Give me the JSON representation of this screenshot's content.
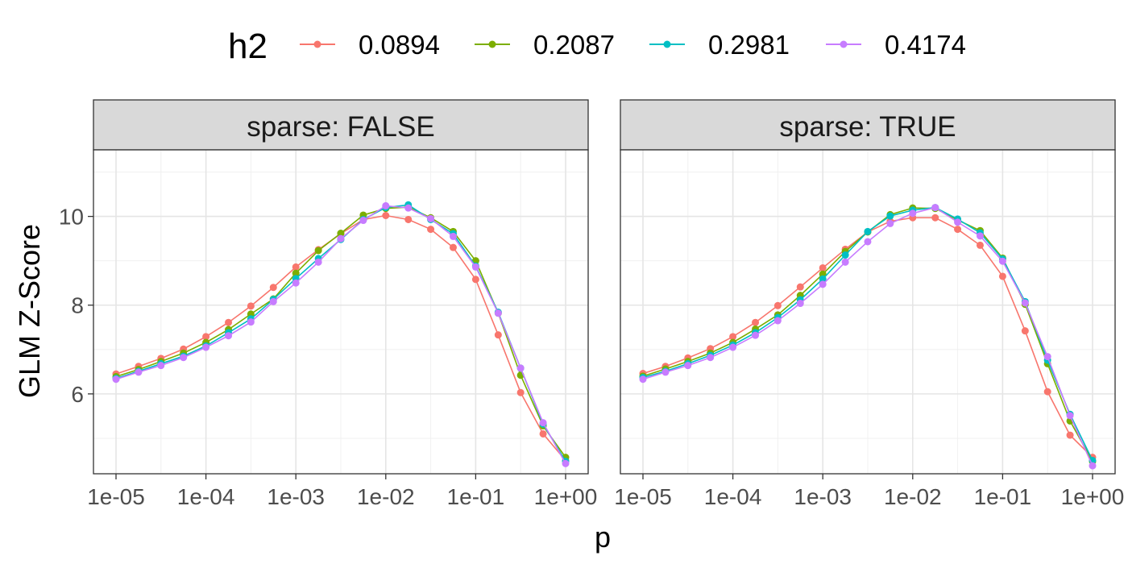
{
  "chart_data": {
    "type": "line",
    "ylabel": "GLM Z-Score",
    "xlabel": "p",
    "x_scale": "log10",
    "xlim": [
      1e-05,
      1
    ],
    "ylim": [
      4.2,
      11.5
    ],
    "grid": true,
    "legend": {
      "title": "h2",
      "position": "top"
    },
    "x_ticks": [
      {
        "value": 1e-05,
        "label": "1e-05"
      },
      {
        "value": 0.0001,
        "label": "1e-04"
      },
      {
        "value": 0.001,
        "label": "1e-03"
      },
      {
        "value": 0.01,
        "label": "1e-02"
      },
      {
        "value": 0.1,
        "label": "1e-01"
      },
      {
        "value": 1,
        "label": "1e+00"
      }
    ],
    "y_ticks": [
      {
        "value": 6,
        "label": "6"
      },
      {
        "value": 8,
        "label": "8"
      },
      {
        "value": 10,
        "label": "10"
      }
    ],
    "x": [
      1e-05,
      1.78e-05,
      3.16e-05,
      5.62e-05,
      0.0001,
      0.000178,
      0.000316,
      0.000562,
      0.001,
      0.00178,
      0.00316,
      0.00562,
      0.01,
      0.0178,
      0.0316,
      0.0562,
      0.1,
      0.178,
      0.316,
      0.562,
      1
    ],
    "panels": [
      {
        "strip": "sparse: FALSE",
        "series": [
          {
            "name": "0.0894",
            "color": "#F8766D",
            "values": [
              6.45,
              6.62,
              6.8,
              7.01,
              7.29,
              7.61,
              7.98,
              8.4,
              8.86,
              9.25,
              9.61,
              9.93,
              10.02,
              9.93,
              9.71,
              9.3,
              8.58,
              7.33,
              6.03,
              5.1,
              4.5
            ]
          },
          {
            "name": "0.2087",
            "color": "#7CAE00",
            "values": [
              6.39,
              6.55,
              6.73,
              6.92,
              7.16,
              7.45,
              7.8,
              8.14,
              8.72,
              9.23,
              9.62,
              10.03,
              10.18,
              10.21,
              9.97,
              9.66,
              9.0,
              7.82,
              6.42,
              5.28,
              4.57
            ]
          },
          {
            "name": "0.2981",
            "color": "#00BFC4",
            "values": [
              6.35,
              6.51,
              6.68,
              6.85,
              7.08,
              7.38,
              7.69,
              8.13,
              8.6,
              9.05,
              9.48,
              9.93,
              10.2,
              10.26,
              9.93,
              9.61,
              8.88,
              7.84,
              6.58,
              5.32,
              4.48
            ]
          },
          {
            "name": "0.4174",
            "color": "#C77CFF",
            "values": [
              6.33,
              6.49,
              6.64,
              6.82,
              7.05,
              7.31,
              7.62,
              8.08,
              8.5,
              8.97,
              9.5,
              9.91,
              10.24,
              10.19,
              9.95,
              9.55,
              8.86,
              7.82,
              6.58,
              5.35,
              4.43
            ]
          }
        ]
      },
      {
        "strip": "sparse: TRUE",
        "series": [
          {
            "name": "0.0894",
            "color": "#F8766D",
            "values": [
              6.46,
              6.62,
              6.81,
              7.02,
              7.29,
              7.61,
              7.99,
              8.41,
              8.84,
              9.26,
              9.65,
              9.89,
              9.97,
              9.97,
              9.71,
              9.35,
              8.65,
              7.42,
              6.05,
              5.07,
              4.57
            ]
          },
          {
            "name": "0.2087",
            "color": "#7CAE00",
            "values": [
              6.4,
              6.56,
              6.73,
              6.92,
              7.16,
              7.46,
              7.78,
              8.22,
              8.7,
              9.21,
              9.65,
              10.04,
              10.19,
              10.18,
              9.92,
              9.68,
              9.06,
              8.02,
              6.68,
              5.39,
              4.48
            ]
          },
          {
            "name": "0.2981",
            "color": "#00BFC4",
            "values": [
              6.37,
              6.51,
              6.68,
              6.87,
              7.1,
              7.38,
              7.72,
              8.12,
              8.59,
              9.13,
              9.66,
              10.01,
              10.14,
              10.2,
              9.94,
              9.63,
              9.04,
              8.08,
              6.76,
              5.54,
              4.5
            ]
          },
          {
            "name": "0.4174",
            "color": "#C77CFF",
            "values": [
              6.33,
              6.49,
              6.64,
              6.82,
              7.05,
              7.32,
              7.65,
              8.04,
              8.47,
              8.97,
              9.43,
              9.84,
              10.07,
              10.2,
              9.87,
              9.56,
              8.99,
              8.05,
              6.84,
              5.51,
              4.38
            ]
          }
        ]
      }
    ]
  }
}
